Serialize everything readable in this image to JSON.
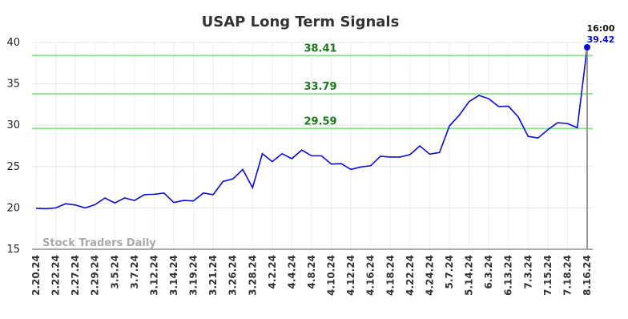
{
  "chart_data": {
    "type": "line",
    "title": "USAP Long Term Signals",
    "categories": [
      "2.20.24",
      null,
      "2.22.24",
      null,
      "2.27.24",
      null,
      "2.29.24",
      null,
      "3.5.24",
      null,
      "3.7.24",
      null,
      "3.12.24",
      null,
      "3.14.24",
      null,
      "3.19.24",
      null,
      "3.21.24",
      null,
      "3.26.24",
      null,
      "3.28.24",
      null,
      "4.2.24",
      null,
      "4.4.24",
      null,
      "4.8.24",
      null,
      "4.10.24",
      null,
      "4.12.24",
      null,
      "4.16.24",
      null,
      "4.18.24",
      null,
      "4.22.24",
      null,
      "4.24.24",
      null,
      "5.7.24",
      null,
      "5.14.24",
      null,
      "6.3.24",
      null,
      "6.13.24",
      null,
      "7.3.24",
      null,
      "7.15.24",
      null,
      "7.18.24",
      null,
      "8.16.24"
    ],
    "values": [
      19.95,
      19.9,
      20.0,
      20.5,
      20.35,
      20.0,
      20.4,
      21.2,
      20.6,
      21.2,
      20.9,
      21.6,
      21.65,
      21.8,
      20.65,
      20.9,
      20.85,
      21.8,
      21.6,
      23.2,
      23.5,
      24.65,
      22.45,
      26.55,
      25.6,
      26.55,
      25.95,
      27.0,
      26.3,
      26.3,
      25.3,
      25.35,
      24.65,
      24.95,
      25.1,
      26.25,
      26.15,
      26.15,
      26.45,
      27.5,
      26.5,
      26.7,
      29.9,
      31.2,
      32.85,
      33.6,
      33.2,
      32.25,
      32.3,
      31.0,
      28.65,
      28.45,
      29.45,
      30.3,
      30.2,
      29.7,
      39.42
    ],
    "color": "#0b0bd6",
    "levels": [
      38.41,
      33.79,
      29.59
    ],
    "level_color": "#90e090",
    "level_label_color": "#1a7a1a",
    "last_time": "16:00",
    "watermark": "Stock Traders Daily",
    "ylim": [
      15,
      40
    ],
    "yticks": [
      15,
      20,
      25,
      30,
      35,
      40
    ],
    "grid": true
  }
}
